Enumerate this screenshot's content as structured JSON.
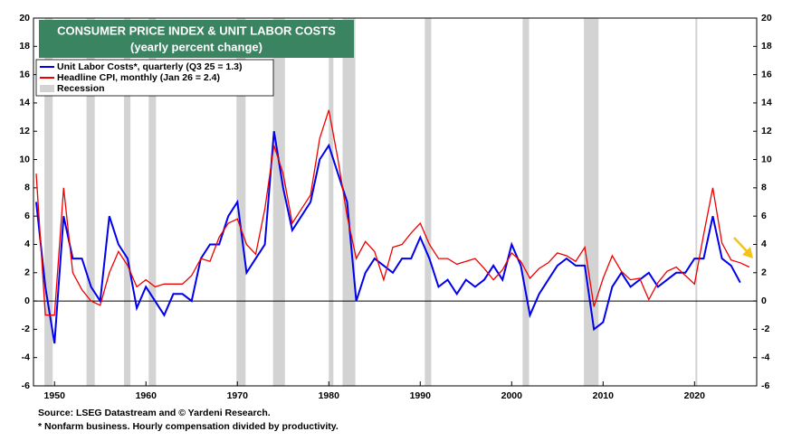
{
  "chart_data": {
    "type": "line",
    "title": "CONSUMER PRICE INDEX & UNIT LABOR COSTS",
    "subtitle": "(yearly percent change)",
    "source": "Source: LSEG Datastream and © Yardeni Research.",
    "footnote": "* Nonfarm business. Hourly compensation divided by productivity.",
    "recession_label": "Recession",
    "recession_color": "#d3d3d3",
    "recessions": [
      [
        1948.9,
        1949.8
      ],
      [
        1953.5,
        1954.4
      ],
      [
        1957.6,
        1958.3
      ],
      [
        1960.3,
        1961.1
      ],
      [
        1969.9,
        1970.9
      ],
      [
        1973.9,
        1975.2
      ],
      [
        1980.0,
        1980.5
      ],
      [
        1981.5,
        1982.9
      ],
      [
        1990.5,
        1991.2
      ],
      [
        2001.2,
        2001.9
      ],
      [
        2007.9,
        2009.5
      ],
      [
        2020.1,
        2020.3
      ]
    ],
    "x": [
      1948,
      1949,
      1950,
      1951,
      1952,
      1953,
      1954,
      1955,
      1956,
      1957,
      1958,
      1959,
      1960,
      1961,
      1962,
      1963,
      1964,
      1965,
      1966,
      1967,
      1968,
      1969,
      1970,
      1971,
      1972,
      1973,
      1974,
      1975,
      1976,
      1977,
      1978,
      1979,
      1980,
      1981,
      1982,
      1983,
      1984,
      1985,
      1986,
      1987,
      1988,
      1989,
      1990,
      1991,
      1992,
      1993,
      1994,
      1995,
      1996,
      1997,
      1998,
      1999,
      2000,
      2001,
      2002,
      2003,
      2004,
      2005,
      2006,
      2007,
      2008,
      2009,
      2010,
      2011,
      2012,
      2013,
      2014,
      2015,
      2016,
      2017,
      2018,
      2019,
      2020,
      2021,
      2022,
      2023,
      2024,
      2025,
      2026
    ],
    "series": [
      {
        "name": "Unit Labor Costs*, quarterly (Q3 25 = 1.3)",
        "color": "#0000ee",
        "values": [
          7,
          1,
          -3,
          6,
          3,
          3,
          1,
          0,
          6,
          4,
          3,
          -0.5,
          1,
          0,
          -1,
          0.5,
          0.5,
          0,
          3,
          4,
          4,
          6,
          7,
          2,
          3,
          4,
          12,
          8,
          5,
          6,
          7,
          10,
          11,
          9,
          7,
          0,
          2,
          3,
          2.5,
          2,
          3,
          3,
          4.5,
          3,
          1,
          1.5,
          0.5,
          1.5,
          1,
          1.5,
          2.5,
          1.5,
          4,
          2.5,
          -1,
          0.5,
          1.5,
          2.5,
          3,
          2.5,
          2.5,
          -2,
          -1.5,
          1,
          2,
          1,
          1.5,
          2,
          1,
          1.5,
          2,
          2,
          3,
          3,
          6,
          3,
          2.5,
          1.3,
          null
        ]
      },
      {
        "name": "Headline CPI, monthly (Jan 26 = 2.4)",
        "color": "#ee0000",
        "values": [
          9,
          -1,
          -1,
          8,
          2,
          0.8,
          0,
          -0.3,
          2,
          3.5,
          2.5,
          1,
          1.5,
          1,
          1.2,
          1.2,
          1.2,
          1.8,
          3,
          2.8,
          4.5,
          5.5,
          5.8,
          4,
          3.3,
          6.5,
          11,
          9,
          5.5,
          6.5,
          7.5,
          11.5,
          13.5,
          10,
          6,
          3,
          4.2,
          3.5,
          1.5,
          3.8,
          4,
          4.8,
          5.5,
          4,
          3,
          3,
          2.6,
          2.8,
          3,
          2.3,
          1.5,
          2.2,
          3.4,
          2.8,
          1.6,
          2.3,
          2.7,
          3.4,
          3.2,
          2.8,
          3.8,
          -0.4,
          1.6,
          3.2,
          2.1,
          1.5,
          1.6,
          0.1,
          1.3,
          2.1,
          2.4,
          1.8,
          1.2,
          4.7,
          8,
          4.1,
          2.9,
          2.7,
          2.4
        ]
      }
    ],
    "xlim": [
      1947.7,
      2026.8
    ],
    "xticks": [
      1950,
      1960,
      1970,
      1980,
      1990,
      2000,
      2010,
      2020
    ],
    "ylim": [
      -6,
      20
    ],
    "yticks": [
      -6,
      -4,
      -2,
      0,
      2,
      4,
      6,
      8,
      10,
      12,
      14,
      16,
      18,
      20
    ]
  }
}
